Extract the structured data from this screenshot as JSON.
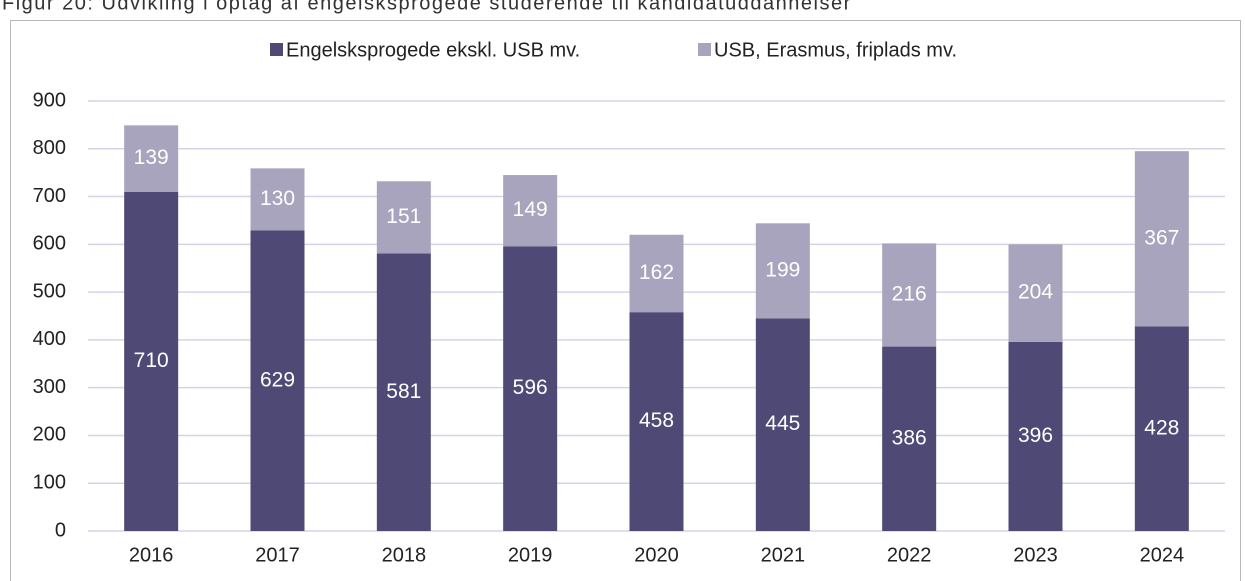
{
  "chart_data": {
    "type": "stacked_bar",
    "title": "Figur 20: Udvikling i optag af engelsksprogede studerende til kandidatuddannelser",
    "categories": [
      "2016",
      "2017",
      "2018",
      "2019",
      "2020",
      "2021",
      "2022",
      "2023",
      "2024"
    ],
    "series": [
      {
        "name": "Engelsksprogede ekskl. USB mv.",
        "color": "#4e4a75",
        "values": [
          710,
          629,
          581,
          596,
          458,
          445,
          386,
          396,
          428
        ]
      },
      {
        "name": "USB, Erasmus, friplads mv.",
        "color": "#a8a4bd",
        "values": [
          139,
          130,
          151,
          149,
          162,
          199,
          216,
          204,
          367
        ]
      }
    ],
    "ylim": [
      0,
      900
    ],
    "yticks": [
      0,
      100,
      200,
      300,
      400,
      500,
      600,
      700,
      800,
      900
    ],
    "grid": true,
    "legend": "top"
  }
}
